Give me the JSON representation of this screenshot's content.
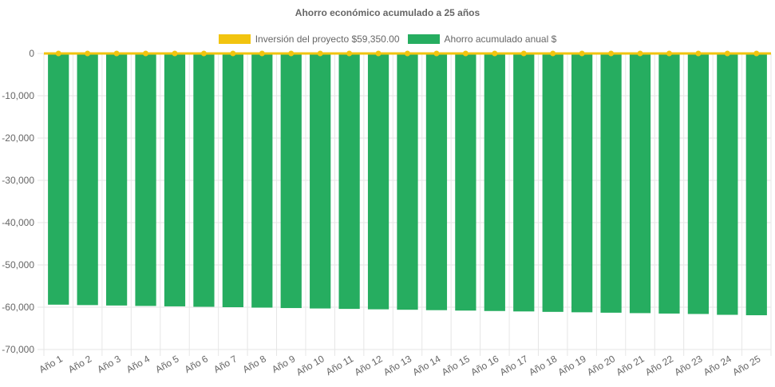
{
  "chart_data": {
    "type": "bar",
    "title": "Ahorro económico acumulado a 25 años",
    "categories": [
      "Año 1",
      "Año 2",
      "Año 3",
      "Año 4",
      "Año 5",
      "Año 6",
      "Año 7",
      "Año 8",
      "Año 9",
      "Año 10",
      "Año 11",
      "Año 12",
      "Año 13",
      "Año 14",
      "Año 15",
      "Año 16",
      "Año 17",
      "Año 18",
      "Año 19",
      "Año 20",
      "Año 21",
      "Año 22",
      "Año 23",
      "Año 24",
      "Año 25"
    ],
    "series": [
      {
        "name": "Inversión del proyecto $59,350.00",
        "type": "line",
        "color": "#f2c40f",
        "values": [
          0,
          0,
          0,
          0,
          0,
          0,
          0,
          0,
          0,
          0,
          0,
          0,
          0,
          0,
          0,
          0,
          0,
          0,
          0,
          0,
          0,
          0,
          0,
          0,
          0
        ]
      },
      {
        "name": "Ahorro acumulado anual $",
        "type": "bar",
        "color": "#26ad60",
        "values": [
          -59400,
          -59500,
          -59600,
          -59700,
          -59800,
          -59900,
          -60000,
          -60100,
          -60200,
          -60300,
          -60400,
          -60500,
          -60600,
          -60700,
          -60800,
          -60900,
          -61000,
          -61100,
          -61200,
          -61300,
          -61400,
          -61500,
          -61600,
          -61800,
          -61900
        ]
      }
    ],
    "ylim": [
      -70000,
      0
    ],
    "yticks": [
      "0",
      "-10,000",
      "-20,000",
      "-30,000",
      "-40,000",
      "-50,000",
      "-60,000",
      "-70,000"
    ],
    "grid": true,
    "legend_position": "top"
  }
}
